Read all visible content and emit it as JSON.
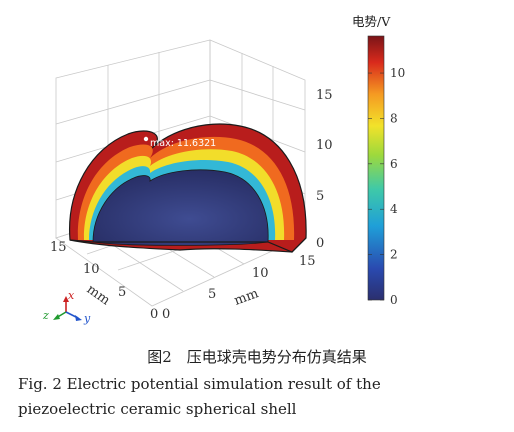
{
  "figure": {
    "max_label": "max: 11.6321",
    "axes": {
      "z_ticks": [
        "0",
        "5",
        "10",
        "15"
      ],
      "x_ticks": [
        "15",
        "10",
        "5",
        "0"
      ],
      "y_ticks": [
        "0",
        "5",
        "10",
        "15"
      ],
      "x_unit": "mm",
      "y_unit": "mm"
    },
    "triad": {
      "x": "x",
      "y": "y",
      "z": "z"
    },
    "colorbar": {
      "title": "电势/V",
      "ticks": [
        "0",
        "2",
        "4",
        "6",
        "8",
        "10"
      ],
      "min": 0,
      "max": 11.6321
    }
  },
  "caption": {
    "cn": "图2　压电球壳电势分布仿真结果",
    "en_line1": "Fig. 2  Electric potential simulation result of the",
    "en_line2": "piezoelectric ceramic spherical shell"
  }
}
